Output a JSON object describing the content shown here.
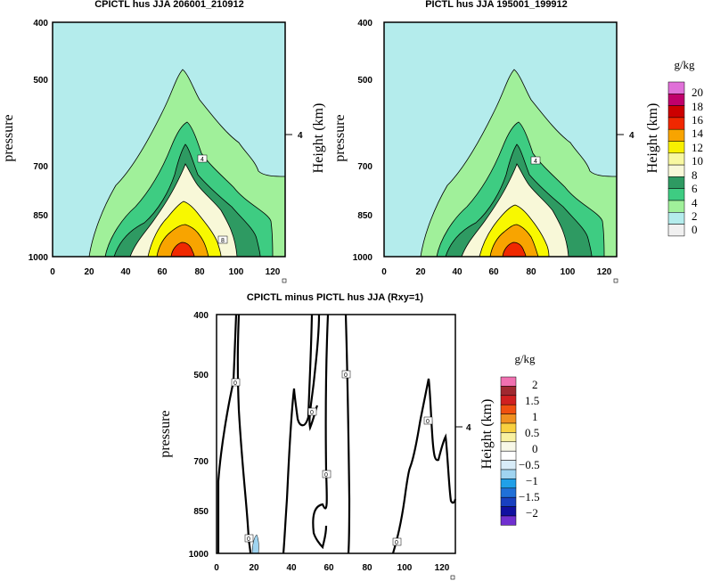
{
  "chart_data": [
    {
      "type": "contour",
      "title": "CPICTL hus JJA 206001_210912",
      "xlabel": "",
      "ylabel": "pressure",
      "y2label": "Height (km)",
      "y2ticks": [
        "4"
      ],
      "xticks": [
        "0",
        "20",
        "40",
        "60",
        "80",
        "100",
        "120"
      ],
      "yticks": [
        "400",
        "500",
        "700",
        "850",
        "1000"
      ],
      "xlim": [
        0,
        127
      ],
      "units": "g/kg",
      "levels": [
        "0",
        "2",
        "4",
        "6",
        "8",
        "10",
        "12",
        "14",
        "16",
        "18",
        "20"
      ],
      "colors": [
        "#f0f0f0",
        "#b4ecec",
        "#a0f09a",
        "#3ecc82",
        "#2e9a62",
        "#f8f8d8",
        "#f8f8a0",
        "#f8f000",
        "#f8a400",
        "#f02800",
        "#cc0000",
        "#c0006c",
        "#e070d8"
      ],
      "contour_labels": [
        "4",
        "8"
      ]
    },
    {
      "type": "contour",
      "title": "PICTL hus JJA 195001_199912",
      "xlabel": "",
      "ylabel": "pressure",
      "y2label": "Height (km)",
      "y2ticks": [
        "4"
      ],
      "xticks": [
        "0",
        "20",
        "40",
        "60",
        "80",
        "100",
        "120"
      ],
      "yticks": [
        "400",
        "500",
        "700",
        "850",
        "1000"
      ],
      "xlim": [
        0,
        127
      ],
      "units": "g/kg",
      "levels": [
        "0",
        "2",
        "4",
        "6",
        "8",
        "10",
        "12",
        "14",
        "16",
        "18",
        "20"
      ],
      "contour_labels": [
        "4"
      ]
    },
    {
      "type": "contour",
      "title": "CPICTL minus PICTL hus JJA (Rxy=1)",
      "xlabel": "",
      "ylabel": "pressure",
      "y2label": "Height (km)",
      "y2ticks": [
        "4"
      ],
      "xticks": [
        "0",
        "20",
        "40",
        "60",
        "80",
        "100",
        "120"
      ],
      "yticks": [
        "400",
        "500",
        "700",
        "850",
        "1000"
      ],
      "xlim": [
        0,
        127
      ],
      "units": "g/kg",
      "levels": [
        "2",
        "1.5",
        "1",
        "0.5",
        "0",
        "−0.5",
        "−1",
        "−1.5",
        "−2"
      ],
      "colors": [
        "#f070b0",
        "#a02830",
        "#d02020",
        "#f05010",
        "#f09020",
        "#f8d040",
        "#f8f0a0",
        "#f8f8e8",
        "#ffffff",
        "#d8ecf8",
        "#a0d4f0",
        "#20a0e8",
        "#2070d8",
        "#1840c0",
        "#1010a0",
        "#7030d0"
      ],
      "contour_labels": [
        "0",
        "0",
        "0",
        "0",
        "0",
        "0",
        "0",
        "0"
      ]
    }
  ]
}
